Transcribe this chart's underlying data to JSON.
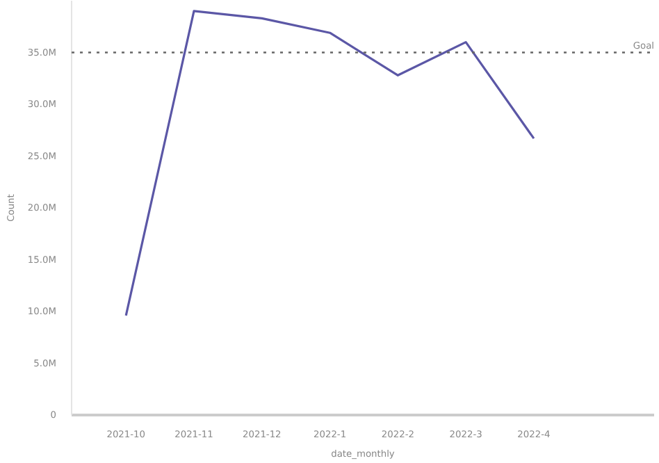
{
  "chart_data": {
    "type": "line",
    "xlabel": "date_monthly",
    "ylabel": "Count",
    "categories": [
      "2021-10",
      "2021-11",
      "2021-12",
      "2022-1",
      "2022-2",
      "2022-3",
      "2022-4"
    ],
    "series": [
      {
        "color": "#5b57a6",
        "values": [
          9600000,
          39000000,
          38300000,
          36900000,
          32800000,
          36000000,
          26700000
        ]
      }
    ],
    "yticks": [
      {
        "value": 0,
        "label": "0"
      },
      {
        "value": 5000000,
        "label": "5.0M"
      },
      {
        "value": 10000000,
        "label": "10.0M"
      },
      {
        "value": 15000000,
        "label": "15.0M"
      },
      {
        "value": 20000000,
        "label": "20.0M"
      },
      {
        "value": 25000000,
        "label": "25.0M"
      },
      {
        "value": 30000000,
        "label": "30.0M"
      },
      {
        "value": 35000000,
        "label": "35.0M"
      }
    ],
    "ref_lines": [
      {
        "axis": "y",
        "value": 35000000,
        "label": "Goal",
        "color": "#666666",
        "line_style": "dotted"
      }
    ],
    "ylim": [
      0,
      40000000
    ],
    "grid": false,
    "marker": "none",
    "line_style": "solid"
  }
}
